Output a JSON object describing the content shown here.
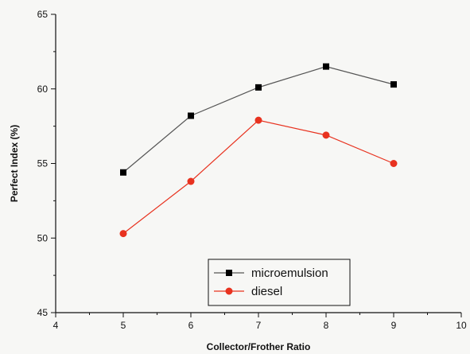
{
  "chart_data": {
    "type": "line",
    "title": "",
    "xlabel": "Collector/Frother Ratio",
    "ylabel": "Perfect Index (%)",
    "xlim": [
      4,
      10
    ],
    "ylim": [
      45,
      65
    ],
    "x_ticks": [
      "4",
      "5",
      "6",
      "7",
      "8",
      "9",
      "10"
    ],
    "y_ticks": [
      "45",
      "50",
      "55",
      "60",
      "65"
    ],
    "grid": false,
    "legend_position": "bottom-center",
    "series": [
      {
        "name": "microemulsion",
        "color": "#000000",
        "line_color": "#555555",
        "marker": "square",
        "x": [
          5,
          6,
          7,
          8,
          9
        ],
        "y": [
          54.4,
          58.2,
          60.1,
          61.5,
          60.3
        ]
      },
      {
        "name": "diesel",
        "color": "#e8321f",
        "line_color": "#e8321f",
        "marker": "circle",
        "x": [
          5,
          6,
          7,
          8,
          9
        ],
        "y": [
          50.3,
          53.8,
          57.9,
          56.9,
          55.0
        ]
      }
    ]
  }
}
